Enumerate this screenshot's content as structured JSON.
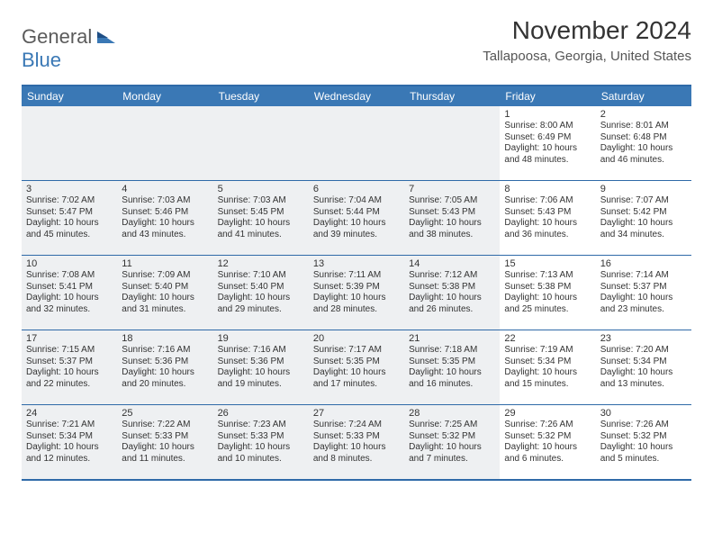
{
  "logo": {
    "general": "General",
    "blue": "Blue"
  },
  "header": {
    "title": "November 2024",
    "location": "Tallapoosa, Georgia, United States"
  },
  "calendar": {
    "days_of_week": [
      "Sunday",
      "Monday",
      "Tuesday",
      "Wednesday",
      "Thursday",
      "Friday",
      "Saturday"
    ],
    "colors": {
      "header_bg": "#3a78b5",
      "header_text": "#ffffff",
      "border": "#2f6aa8",
      "shade_bg": "#eef0f2",
      "text": "#333333"
    },
    "weeks": [
      [
        {
          "num": "",
          "sunrise": "",
          "sunset": "",
          "daylight": "",
          "shaded": true
        },
        {
          "num": "",
          "sunrise": "",
          "sunset": "",
          "daylight": "",
          "shaded": true
        },
        {
          "num": "",
          "sunrise": "",
          "sunset": "",
          "daylight": "",
          "shaded": true
        },
        {
          "num": "",
          "sunrise": "",
          "sunset": "",
          "daylight": "",
          "shaded": true
        },
        {
          "num": "",
          "sunrise": "",
          "sunset": "",
          "daylight": "",
          "shaded": true
        },
        {
          "num": "1",
          "sunrise": "Sunrise: 8:00 AM",
          "sunset": "Sunset: 6:49 PM",
          "daylight": "Daylight: 10 hours and 48 minutes.",
          "shaded": false
        },
        {
          "num": "2",
          "sunrise": "Sunrise: 8:01 AM",
          "sunset": "Sunset: 6:48 PM",
          "daylight": "Daylight: 10 hours and 46 minutes.",
          "shaded": false
        }
      ],
      [
        {
          "num": "3",
          "sunrise": "Sunrise: 7:02 AM",
          "sunset": "Sunset: 5:47 PM",
          "daylight": "Daylight: 10 hours and 45 minutes.",
          "shaded": true
        },
        {
          "num": "4",
          "sunrise": "Sunrise: 7:03 AM",
          "sunset": "Sunset: 5:46 PM",
          "daylight": "Daylight: 10 hours and 43 minutes.",
          "shaded": true
        },
        {
          "num": "5",
          "sunrise": "Sunrise: 7:03 AM",
          "sunset": "Sunset: 5:45 PM",
          "daylight": "Daylight: 10 hours and 41 minutes.",
          "shaded": true
        },
        {
          "num": "6",
          "sunrise": "Sunrise: 7:04 AM",
          "sunset": "Sunset: 5:44 PM",
          "daylight": "Daylight: 10 hours and 39 minutes.",
          "shaded": true
        },
        {
          "num": "7",
          "sunrise": "Sunrise: 7:05 AM",
          "sunset": "Sunset: 5:43 PM",
          "daylight": "Daylight: 10 hours and 38 minutes.",
          "shaded": true
        },
        {
          "num": "8",
          "sunrise": "Sunrise: 7:06 AM",
          "sunset": "Sunset: 5:43 PM",
          "daylight": "Daylight: 10 hours and 36 minutes.",
          "shaded": false
        },
        {
          "num": "9",
          "sunrise": "Sunrise: 7:07 AM",
          "sunset": "Sunset: 5:42 PM",
          "daylight": "Daylight: 10 hours and 34 minutes.",
          "shaded": false
        }
      ],
      [
        {
          "num": "10",
          "sunrise": "Sunrise: 7:08 AM",
          "sunset": "Sunset: 5:41 PM",
          "daylight": "Daylight: 10 hours and 32 minutes.",
          "shaded": true
        },
        {
          "num": "11",
          "sunrise": "Sunrise: 7:09 AM",
          "sunset": "Sunset: 5:40 PM",
          "daylight": "Daylight: 10 hours and 31 minutes.",
          "shaded": true
        },
        {
          "num": "12",
          "sunrise": "Sunrise: 7:10 AM",
          "sunset": "Sunset: 5:40 PM",
          "daylight": "Daylight: 10 hours and 29 minutes.",
          "shaded": true
        },
        {
          "num": "13",
          "sunrise": "Sunrise: 7:11 AM",
          "sunset": "Sunset: 5:39 PM",
          "daylight": "Daylight: 10 hours and 28 minutes.",
          "shaded": true
        },
        {
          "num": "14",
          "sunrise": "Sunrise: 7:12 AM",
          "sunset": "Sunset: 5:38 PM",
          "daylight": "Daylight: 10 hours and 26 minutes.",
          "shaded": true
        },
        {
          "num": "15",
          "sunrise": "Sunrise: 7:13 AM",
          "sunset": "Sunset: 5:38 PM",
          "daylight": "Daylight: 10 hours and 25 minutes.",
          "shaded": false
        },
        {
          "num": "16",
          "sunrise": "Sunrise: 7:14 AM",
          "sunset": "Sunset: 5:37 PM",
          "daylight": "Daylight: 10 hours and 23 minutes.",
          "shaded": false
        }
      ],
      [
        {
          "num": "17",
          "sunrise": "Sunrise: 7:15 AM",
          "sunset": "Sunset: 5:37 PM",
          "daylight": "Daylight: 10 hours and 22 minutes.",
          "shaded": true
        },
        {
          "num": "18",
          "sunrise": "Sunrise: 7:16 AM",
          "sunset": "Sunset: 5:36 PM",
          "daylight": "Daylight: 10 hours and 20 minutes.",
          "shaded": true
        },
        {
          "num": "19",
          "sunrise": "Sunrise: 7:16 AM",
          "sunset": "Sunset: 5:36 PM",
          "daylight": "Daylight: 10 hours and 19 minutes.",
          "shaded": true
        },
        {
          "num": "20",
          "sunrise": "Sunrise: 7:17 AM",
          "sunset": "Sunset: 5:35 PM",
          "daylight": "Daylight: 10 hours and 17 minutes.",
          "shaded": true
        },
        {
          "num": "21",
          "sunrise": "Sunrise: 7:18 AM",
          "sunset": "Sunset: 5:35 PM",
          "daylight": "Daylight: 10 hours and 16 minutes.",
          "shaded": true
        },
        {
          "num": "22",
          "sunrise": "Sunrise: 7:19 AM",
          "sunset": "Sunset: 5:34 PM",
          "daylight": "Daylight: 10 hours and 15 minutes.",
          "shaded": false
        },
        {
          "num": "23",
          "sunrise": "Sunrise: 7:20 AM",
          "sunset": "Sunset: 5:34 PM",
          "daylight": "Daylight: 10 hours and 13 minutes.",
          "shaded": false
        }
      ],
      [
        {
          "num": "24",
          "sunrise": "Sunrise: 7:21 AM",
          "sunset": "Sunset: 5:34 PM",
          "daylight": "Daylight: 10 hours and 12 minutes.",
          "shaded": true
        },
        {
          "num": "25",
          "sunrise": "Sunrise: 7:22 AM",
          "sunset": "Sunset: 5:33 PM",
          "daylight": "Daylight: 10 hours and 11 minutes.",
          "shaded": true
        },
        {
          "num": "26",
          "sunrise": "Sunrise: 7:23 AM",
          "sunset": "Sunset: 5:33 PM",
          "daylight": "Daylight: 10 hours and 10 minutes.",
          "shaded": true
        },
        {
          "num": "27",
          "sunrise": "Sunrise: 7:24 AM",
          "sunset": "Sunset: 5:33 PM",
          "daylight": "Daylight: 10 hours and 8 minutes.",
          "shaded": true
        },
        {
          "num": "28",
          "sunrise": "Sunrise: 7:25 AM",
          "sunset": "Sunset: 5:32 PM",
          "daylight": "Daylight: 10 hours and 7 minutes.",
          "shaded": true
        },
        {
          "num": "29",
          "sunrise": "Sunrise: 7:26 AM",
          "sunset": "Sunset: 5:32 PM",
          "daylight": "Daylight: 10 hours and 6 minutes.",
          "shaded": false
        },
        {
          "num": "30",
          "sunrise": "Sunrise: 7:26 AM",
          "sunset": "Sunset: 5:32 PM",
          "daylight": "Daylight: 10 hours and 5 minutes.",
          "shaded": false
        }
      ]
    ]
  }
}
